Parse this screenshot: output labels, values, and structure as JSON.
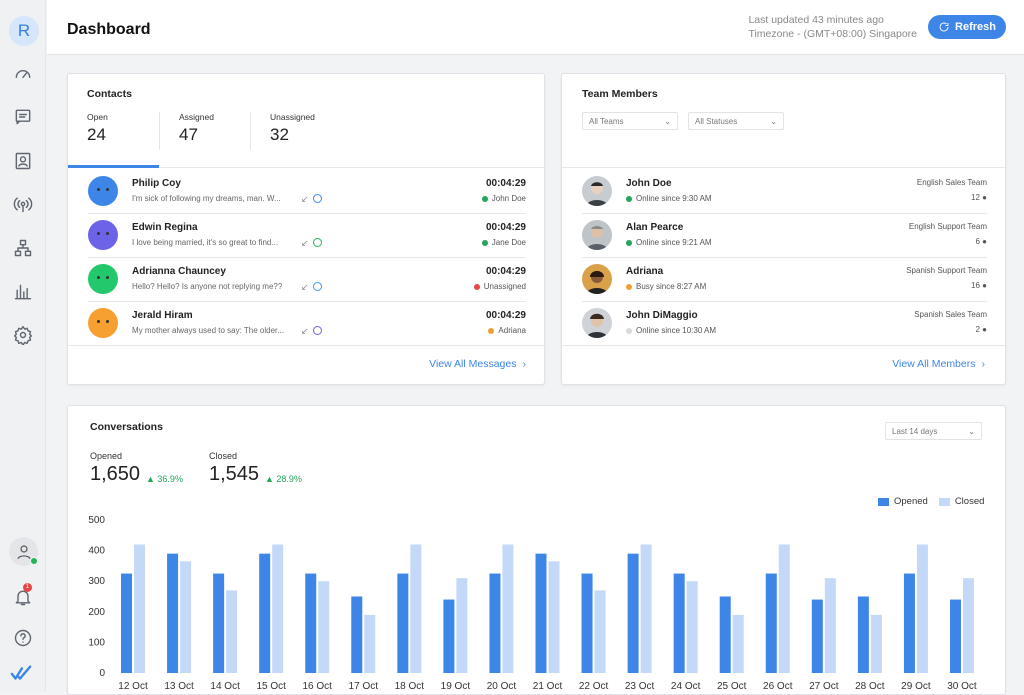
{
  "sidebar": {
    "avatar_letter": "R",
    "icons": [
      "speedometer-icon",
      "messages-icon",
      "contacts-icon",
      "broadcast-icon",
      "org-chart-icon",
      "reports-icon",
      "settings-icon"
    ],
    "notification_count": "1"
  },
  "header": {
    "title": "Dashboard",
    "last_updated": "Last updated 43 minutes ago",
    "timezone": "Timezone - (GMT+08:00) Singapore",
    "refresh_label": "Refresh"
  },
  "contacts": {
    "title": "Contacts",
    "stats": [
      {
        "label": "Open",
        "value": "24"
      },
      {
        "label": "Assigned",
        "value": "47"
      },
      {
        "label": "Unassigned",
        "value": "32"
      }
    ],
    "rows": [
      {
        "name": "Philip Coy",
        "message": "I'm sick of following my dreams, man. W...",
        "time": "00:04:29",
        "status": "John Doe",
        "status_color": "#22a65a",
        "avatar_color": "#3d86e8",
        "channel_color": "#3d86e8"
      },
      {
        "name": "Edwin Regina",
        "message": "I love being married, it's so great to find...",
        "time": "00:04:29",
        "status": "Jane Doe",
        "status_color": "#22a65a",
        "avatar_color": "#6c63e8",
        "channel_color": "#22b55d"
      },
      {
        "name": "Adrianna Chauncey",
        "message": "Hello? Hello? Is anyone not replying me??",
        "time": "00:04:29",
        "status": "Unassigned",
        "status_color": "#e84747",
        "avatar_color": "#22c86b",
        "channel_color": "#3d9be8"
      },
      {
        "name": "Jerald Hiram",
        "message": "My mother always used to say: The older...",
        "time": "00:04:29",
        "status": "Adriana",
        "status_color": "#f0a030",
        "avatar_color": "#f5a030",
        "channel_color": "#7a5ce0"
      }
    ],
    "view_all": "View All Messages"
  },
  "team": {
    "title": "Team Members",
    "filters": [
      "All Teams",
      "All Statuses"
    ],
    "members": [
      {
        "name": "John Doe",
        "status": "Online since 9:30 AM",
        "status_color": "#22a65a",
        "team": "English Sales Team",
        "count": "12"
      },
      {
        "name": "Alan Pearce",
        "status": "Online since 9:21 AM",
        "status_color": "#22a65a",
        "team": "English Support Team",
        "count": "6"
      },
      {
        "name": "Adriana",
        "status": "Busy since 8:27 AM",
        "status_color": "#f0a030",
        "team": "Spanish Support Team",
        "count": "16"
      },
      {
        "name": "John DiMaggio",
        "status": "Online since 10:30 AM",
        "status_color": "#d8dadd",
        "team": "Spanish Sales Team",
        "count": "2"
      }
    ],
    "view_all": "View All Members"
  },
  "conversations": {
    "title": "Conversations",
    "range": "Last 14 days",
    "opened_label": "Opened",
    "opened_value": "1,650",
    "opened_delta": "36.9%",
    "closed_label": "Closed",
    "closed_value": "1,545",
    "closed_delta": "28.9%"
  },
  "chart_data": {
    "type": "bar",
    "categories": [
      "12 Oct",
      "13 Oct",
      "14 Oct",
      "15 Oct",
      "16 Oct",
      "17 Oct",
      "18 Oct",
      "19 Oct",
      "20 Oct",
      "21 Oct",
      "22 Oct",
      "23 Oct",
      "24 Oct",
      "25 Oct",
      "26 Oct",
      "27 Oct",
      "28 Oct",
      "29 Oct",
      "30 Oct"
    ],
    "series": [
      {
        "name": "Opened",
        "color": "#3d86e8",
        "values": [
          325,
          390,
          325,
          390,
          325,
          250,
          325,
          240,
          325,
          390,
          325,
          390,
          325,
          250,
          325,
          240,
          250,
          325,
          240
        ]
      },
      {
        "name": "Closed",
        "color": "#c3d9f7",
        "values": [
          420,
          365,
          270,
          420,
          300,
          190,
          420,
          310,
          420,
          365,
          270,
          420,
          300,
          190,
          420,
          310,
          190,
          420,
          310
        ]
      }
    ],
    "yticks": [
      0,
      100,
      200,
      300,
      400,
      500
    ],
    "ylim": [
      0,
      500
    ],
    "legend": "top-right"
  }
}
